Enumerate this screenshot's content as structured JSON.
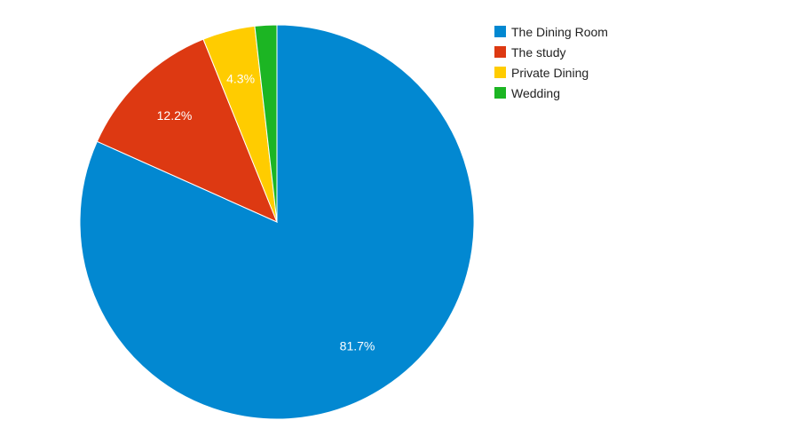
{
  "chart_data": {
    "type": "pie",
    "title": "",
    "legend_position": "right",
    "start_angle": "12 o'clock",
    "direction": "clockwise",
    "slices": [
      {
        "label": "The Dining Room",
        "value": 81.7,
        "color": "#0288d1",
        "data_label": "81.7%"
      },
      {
        "label": "The study",
        "value": 12.2,
        "color": "#dd3912",
        "data_label": "12.2%"
      },
      {
        "label": "Private Dining",
        "value": 4.3,
        "color": "#ffcc00",
        "data_label": "4.3%"
      },
      {
        "label": "Wedding",
        "value": 1.8,
        "color": "#1cb523",
        "data_label": ""
      }
    ]
  }
}
